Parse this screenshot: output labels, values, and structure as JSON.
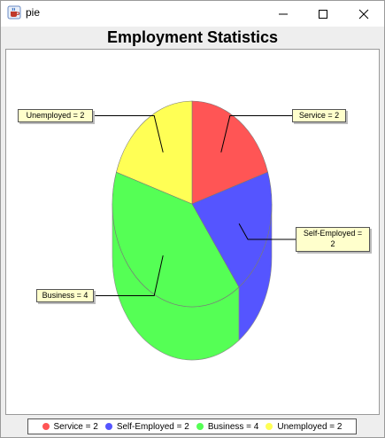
{
  "window": {
    "title": "pie"
  },
  "chart_data": {
    "type": "pie",
    "title": "Employment Statistics",
    "categories": [
      "Service",
      "Self-Employed",
      "Business",
      "Unemployed"
    ],
    "values": [
      2,
      2,
      4,
      2
    ],
    "colors": [
      "#ff5555",
      "#5555ff",
      "#55ff55",
      "#ffff55"
    ],
    "labels": [
      "Service = 2",
      "Self-Employed = 2",
      "Business = 4",
      "Unemployed = 2"
    ],
    "self_employed_label_lines": [
      "Self-Employed =",
      "2"
    ],
    "legend": [
      "Service = 2",
      "Self-Employed = 2",
      "Business = 4",
      "Unemployed = 2"
    ],
    "legend_position": "bottom",
    "style": "3d"
  }
}
